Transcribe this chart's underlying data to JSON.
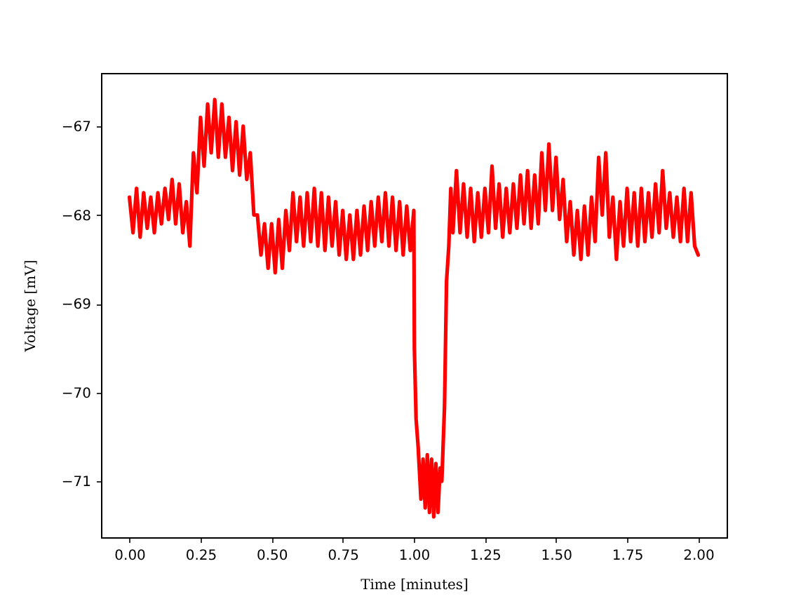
{
  "chart_data": {
    "type": "line",
    "xlabel": "Time [minutes]",
    "ylabel": "Voltage [mV]",
    "x": [
      0.0,
      0.0125,
      0.025,
      0.0375,
      0.05,
      0.0625,
      0.075,
      0.0875,
      0.1,
      0.1125,
      0.125,
      0.1375,
      0.15,
      0.1625,
      0.175,
      0.1875,
      0.2,
      0.2125,
      0.225,
      0.2375,
      0.25,
      0.2625,
      0.275,
      0.2875,
      0.3,
      0.3125,
      0.325,
      0.3375,
      0.35,
      0.3625,
      0.375,
      0.3875,
      0.4,
      0.4125,
      0.425,
      0.4375,
      0.45,
      0.4625,
      0.475,
      0.4875,
      0.5,
      0.5125,
      0.525,
      0.5375,
      0.55,
      0.5625,
      0.575,
      0.5875,
      0.6,
      0.6125,
      0.625,
      0.6375,
      0.65,
      0.6625,
      0.675,
      0.6875,
      0.7,
      0.7125,
      0.725,
      0.7375,
      0.75,
      0.7625,
      0.775,
      0.7875,
      0.8,
      0.8125,
      0.825,
      0.8375,
      0.85,
      0.8625,
      0.875,
      0.8875,
      0.9,
      0.9125,
      0.925,
      0.9375,
      0.95,
      0.9625,
      0.975,
      0.9875,
      1.0,
      1.002,
      1.008,
      1.015,
      1.025,
      1.0325,
      1.04,
      1.0475,
      1.055,
      1.0625,
      1.07,
      1.0775,
      1.085,
      1.0925,
      1.0985,
      1.108,
      1.115,
      1.123,
      1.13,
      1.1375,
      1.15,
      1.1625,
      1.175,
      1.1875,
      1.2,
      1.2125,
      1.225,
      1.2375,
      1.25,
      1.2625,
      1.275,
      1.2875,
      1.3,
      1.3125,
      1.325,
      1.3375,
      1.35,
      1.3625,
      1.375,
      1.3875,
      1.4,
      1.4125,
      1.425,
      1.4375,
      1.45,
      1.4625,
      1.475,
      1.4875,
      1.5,
      1.5125,
      1.525,
      1.5375,
      1.55,
      1.5625,
      1.575,
      1.5875,
      1.6,
      1.6125,
      1.625,
      1.6375,
      1.65,
      1.6625,
      1.675,
      1.6875,
      1.7,
      1.7125,
      1.725,
      1.7375,
      1.75,
      1.7625,
      1.775,
      1.7875,
      1.8,
      1.8125,
      1.825,
      1.8375,
      1.85,
      1.8625,
      1.875,
      1.8875,
      1.9,
      1.9125,
      1.925,
      1.9375,
      1.95,
      1.9625,
      1.975,
      1.9875,
      2.0
    ],
    "series": [
      {
        "color": "#ff0000",
        "values": [
          -67.8,
          -68.2,
          -67.7,
          -68.25,
          -67.75,
          -68.15,
          -67.8,
          -68.2,
          -67.75,
          -68.1,
          -67.7,
          -68.05,
          -67.6,
          -68.1,
          -67.65,
          -68.2,
          -67.85,
          -68.35,
          -67.3,
          -67.75,
          -66.9,
          -67.45,
          -66.75,
          -67.3,
          -66.7,
          -67.35,
          -66.75,
          -67.35,
          -66.9,
          -67.5,
          -66.95,
          -67.55,
          -67.0,
          -67.6,
          -67.3,
          -68.0,
          -68.0,
          -68.45,
          -68.1,
          -68.6,
          -68.1,
          -68.65,
          -68.05,
          -68.6,
          -67.95,
          -68.4,
          -67.75,
          -68.3,
          -67.8,
          -68.35,
          -67.75,
          -68.3,
          -67.7,
          -68.35,
          -67.75,
          -68.4,
          -67.8,
          -68.35,
          -67.85,
          -68.45,
          -67.95,
          -68.5,
          -68.0,
          -68.5,
          -67.95,
          -68.45,
          -67.9,
          -68.4,
          -67.85,
          -68.35,
          -67.8,
          -68.3,
          -67.75,
          -68.35,
          -67.8,
          -68.4,
          -67.85,
          -68.45,
          -67.9,
          -68.4,
          -67.95,
          -69.5,
          -70.3,
          -70.6,
          -71.2,
          -70.75,
          -71.3,
          -70.7,
          -71.35,
          -70.75,
          -71.4,
          -70.8,
          -71.35,
          -70.85,
          -71.0,
          -70.15,
          -68.75,
          -68.35,
          -67.7,
          -68.2,
          -67.5,
          -68.2,
          -67.65,
          -68.25,
          -67.7,
          -68.3,
          -67.75,
          -68.25,
          -67.7,
          -68.2,
          -67.45,
          -68.15,
          -67.65,
          -68.25,
          -67.7,
          -68.2,
          -67.65,
          -68.15,
          -67.55,
          -68.1,
          -67.5,
          -68.15,
          -67.55,
          -68.1,
          -67.3,
          -67.95,
          -67.2,
          -67.95,
          -67.35,
          -68.05,
          -67.6,
          -68.3,
          -67.85,
          -68.45,
          -67.95,
          -68.5,
          -67.9,
          -68.45,
          -67.8,
          -68.3,
          -67.35,
          -68.0,
          -67.3,
          -68.25,
          -67.8,
          -68.5,
          -67.85,
          -68.35,
          -67.7,
          -68.3,
          -67.75,
          -68.35,
          -67.7,
          -68.3,
          -67.75,
          -68.25,
          -67.65,
          -68.2,
          -67.5,
          -68.15,
          -67.75,
          -68.25,
          -67.8,
          -68.3,
          -67.7,
          -68.3,
          -67.75,
          -68.35,
          -68.45
        ]
      }
    ],
    "xlim": [
      -0.1,
      2.1
    ],
    "xticks": [
      {
        "value": 0,
        "label": "0.00"
      },
      {
        "value": 0.25,
        "label": "0.25"
      },
      {
        "value": 0.5,
        "label": "0.50"
      },
      {
        "value": 0.75,
        "label": "0.75"
      },
      {
        "value": 1,
        "label": "1.00"
      },
      {
        "value": 1.25,
        "label": "1.25"
      },
      {
        "value": 1.5,
        "label": "1.50"
      },
      {
        "value": 1.75,
        "label": "1.75"
      },
      {
        "value": 2,
        "label": "2.00"
      }
    ],
    "ylim": [
      -71.63,
      -66.4
    ],
    "yticks": [
      -71,
      -70,
      -69,
      -68,
      -67
    ]
  }
}
